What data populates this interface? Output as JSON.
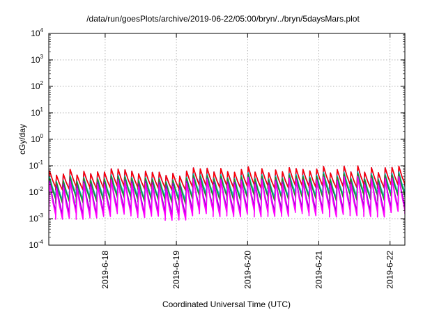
{
  "chart_data": {
    "type": "line",
    "title": "/data/run/goesPlots/archive/2019-06-22/05:00/bryn/../bryn/5daysMars.plot",
    "xlabel": "Coordinated Universal Time (UTC)",
    "ylabel": "cGy/day",
    "yscale": "log",
    "ylim": [
      0.0001,
      10000
    ],
    "yticks": [
      {
        "base": "10",
        "exp": "-4",
        "value": 0.0001
      },
      {
        "base": "10",
        "exp": "-3",
        "value": 0.001
      },
      {
        "base": "10",
        "exp": "-2",
        "value": 0.01
      },
      {
        "base": "10",
        "exp": "-1",
        "value": 0.1
      },
      {
        "base": "10",
        "exp": "0",
        "value": 1
      },
      {
        "base": "10",
        "exp": "1",
        "value": 10
      },
      {
        "base": "10",
        "exp": "2",
        "value": 100
      },
      {
        "base": "10",
        "exp": "3",
        "value": 1000
      },
      {
        "base": "10",
        "exp": "4",
        "value": 10000
      }
    ],
    "xlim": [
      "2019-06-17T05:00",
      "2019-06-22T05:00"
    ],
    "xticks": [
      "2019-6-18",
      "2019-6-19",
      "2019-6-20",
      "2019-6-21",
      "2019-6-22"
    ],
    "grid": true,
    "legend": "none",
    "series": [
      {
        "color": "#0000ff",
        "peak_range": [
          0.035,
          0.1
        ],
        "trough_range": [
          0.01,
          0.02
        ]
      },
      {
        "color": "#ff0000",
        "peak_range": [
          0.035,
          0.1
        ],
        "trough_range": [
          0.01,
          0.02
        ]
      },
      {
        "color": "#00bfbf",
        "peak_range": [
          0.02,
          0.06
        ],
        "trough_range": [
          0.004,
          0.01
        ]
      },
      {
        "color": "#228b22",
        "peak_range": [
          0.02,
          0.05
        ],
        "trough_range": [
          0.003,
          0.008
        ]
      },
      {
        "color": "#9400d3",
        "peak_range": [
          0.015,
          0.04
        ],
        "trough_range": [
          0.001,
          0.003
        ]
      },
      {
        "color": "#ff00ff",
        "peak_range": [
          0.01,
          0.04
        ],
        "trough_range": [
          0.0007,
          0.002
        ]
      }
    ],
    "cycles": 52
  }
}
